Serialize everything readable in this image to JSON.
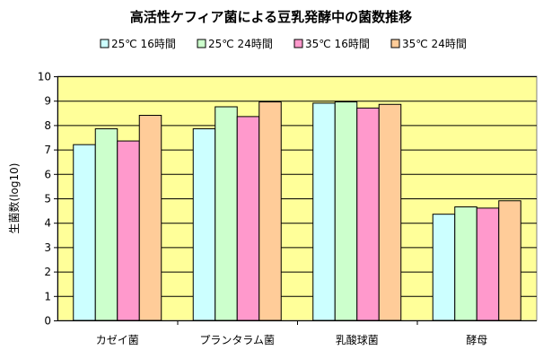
{
  "chart_data": {
    "type": "bar",
    "title": "高活性ケフィア菌による豆乳発酵中の菌数推移",
    "xlabel": "",
    "ylabel": "生菌数(log10)",
    "ylim": [
      0,
      10
    ],
    "yticks": [
      "0",
      "1",
      "2",
      "3",
      "4",
      "5",
      "6",
      "7",
      "8",
      "9",
      "10"
    ],
    "grid": true,
    "legend_position": "top",
    "plot_background": "#FFFF99",
    "categories": [
      "カゼイ菌",
      "プランタラム菌",
      "乳酸球菌",
      "酵母"
    ],
    "series": [
      {
        "name": "25℃ 16時間",
        "color": "#CCFFFF",
        "values": [
          7.2,
          7.85,
          8.9,
          4.35
        ]
      },
      {
        "name": "25℃ 24時間",
        "color": "#CCFFCC",
        "values": [
          7.85,
          8.75,
          8.95,
          4.65
        ]
      },
      {
        "name": "35℃ 16時間",
        "color": "#FF99CC",
        "values": [
          7.35,
          8.35,
          8.7,
          4.6
        ]
      },
      {
        "name": "35℃ 24時間",
        "color": "#FFCC99",
        "values": [
          8.4,
          8.95,
          8.85,
          4.9
        ]
      }
    ]
  }
}
